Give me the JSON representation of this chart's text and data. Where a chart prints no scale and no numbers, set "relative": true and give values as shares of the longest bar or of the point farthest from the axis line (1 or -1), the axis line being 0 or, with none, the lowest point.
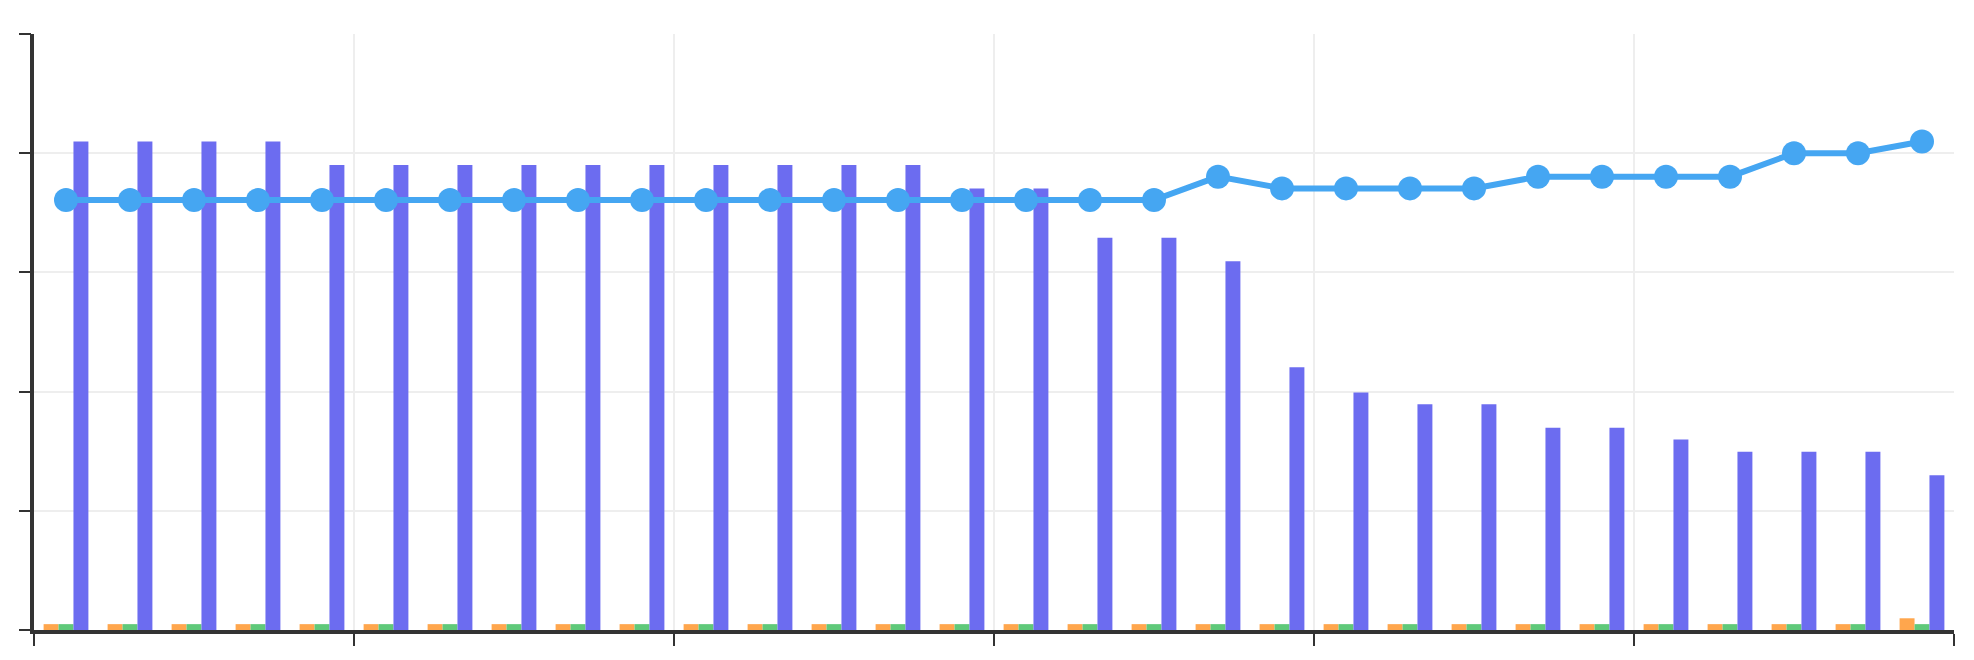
{
  "chart_data": [
    {
      "type": "bar",
      "relative": true,
      "grid": true,
      "categories": [
        null,
        null,
        null,
        null,
        null,
        null,
        null,
        null,
        null,
        null,
        null,
        null,
        null,
        null,
        null,
        null,
        null,
        null,
        null,
        null,
        null,
        null,
        null,
        null,
        null,
        null,
        null,
        null,
        null,
        null
      ],
      "series": [
        {
          "color": "#ffa64d",
          "values": [
            0.012,
            0.012,
            0.012,
            0.012,
            0.012,
            0.012,
            0.012,
            0.012,
            0.012,
            0.012,
            0.012,
            0.012,
            0.012,
            0.012,
            0.012,
            0.012,
            0.012,
            0.012,
            0.012,
            0.012,
            0.012,
            0.012,
            0.012,
            0.012,
            0.012,
            0.012,
            0.012,
            0.012,
            0.012,
            0.024
          ]
        },
        {
          "color": "#5fc97a",
          "values": [
            0.012,
            0.012,
            0.012,
            0.012,
            0.012,
            0.012,
            0.012,
            0.012,
            0.012,
            0.012,
            0.012,
            0.012,
            0.012,
            0.012,
            0.012,
            0.012,
            0.012,
            0.012,
            0.012,
            0.012,
            0.012,
            0.012,
            0.012,
            0.012,
            0.012,
            0.012,
            0.012,
            0.012,
            0.012,
            0.012
          ]
        },
        {
          "color": "#6c6cf0",
          "values": [
            1,
            1,
            1,
            1,
            0.952,
            0.952,
            0.952,
            0.952,
            0.952,
            0.952,
            0.952,
            0.952,
            0.952,
            0.952,
            0.904,
            0.904,
            0.803,
            0.803,
            0.755,
            0.538,
            0.486,
            0.462,
            0.462,
            0.414,
            0.414,
            0.39,
            0.365,
            0.365,
            0.365,
            0.317
          ]
        }
      ]
    },
    {
      "type": "line",
      "relative": true,
      "marker": "circle",
      "line_style": "solid",
      "categories": [
        null,
        null,
        null,
        null,
        null,
        null,
        null,
        null,
        null,
        null,
        null,
        null,
        null,
        null,
        null,
        null,
        null,
        null,
        null,
        null,
        null,
        null,
        null,
        null,
        null,
        null,
        null,
        null,
        null,
        null
      ],
      "series": [
        {
          "color": "#45a6f2",
          "values": [
            0.88,
            0.88,
            0.88,
            0.88,
            0.88,
            0.88,
            0.88,
            0.88,
            0.88,
            0.88,
            0.88,
            0.88,
            0.88,
            0.88,
            0.88,
            0.88,
            0.88,
            0.88,
            0.928,
            0.904,
            0.904,
            0.904,
            0.904,
            0.928,
            0.928,
            0.928,
            0.928,
            0.976,
            0.976,
            1
          ]
        }
      ]
    }
  ]
}
